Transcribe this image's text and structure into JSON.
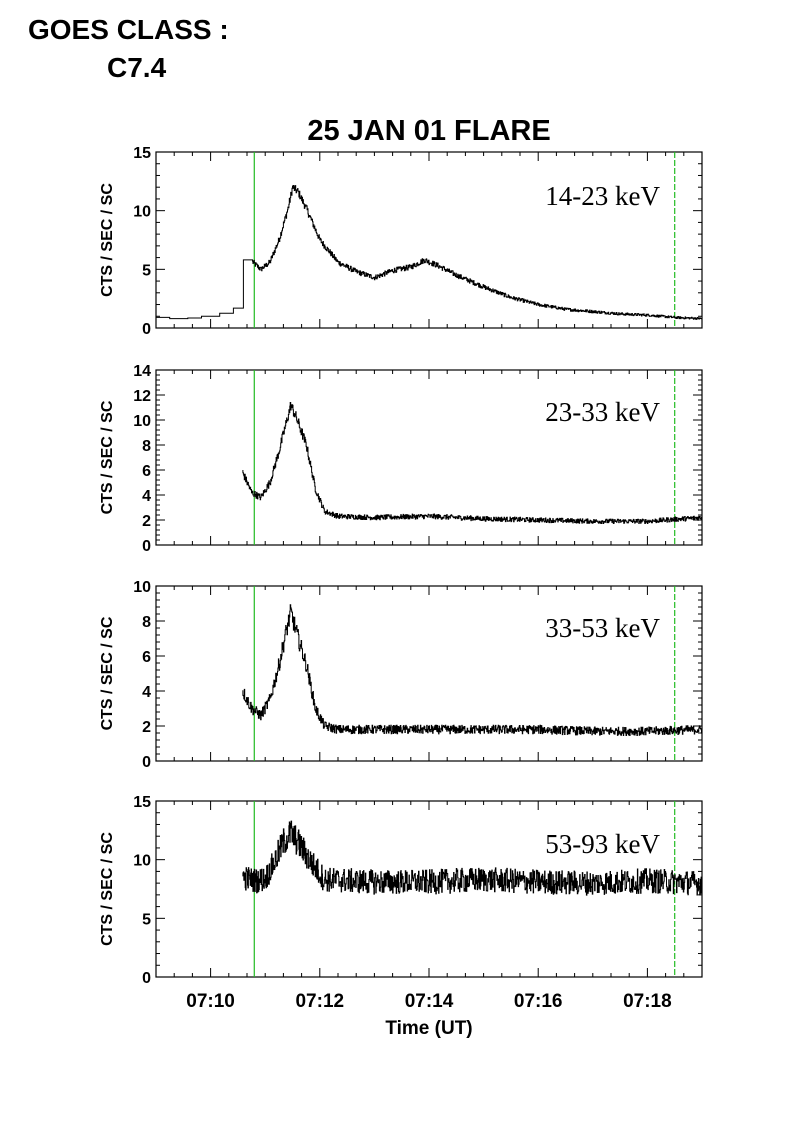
{
  "header": {
    "goes_label": "GOES CLASS :",
    "goes_value": "C7.4"
  },
  "chart_data": {
    "type": "line",
    "title": "25 JAN 01 FLARE",
    "xlabel": "Time (UT)",
    "ylabel": "CTS / SEC / SC",
    "x_unit": "minutes",
    "xlim": [
      "07:09",
      "07:19"
    ],
    "x_tick_labels": [
      "07:10",
      "07:12",
      "07:14",
      "07:16",
      "07:18"
    ],
    "x_tick_values": [
      "07:10",
      "07:12",
      "07:14",
      "07:16",
      "07:18"
    ],
    "vertical_markers": {
      "times": [
        "07:10:48",
        "07:18:30"
      ],
      "color": "#22bb22"
    },
    "line_color": "#000000",
    "panels": [
      {
        "label": "14-23 keV",
        "ylim": [
          0,
          15
        ],
        "y_ticks": [
          "0",
          "5",
          "10",
          "15"
        ],
        "y_tick_values": [
          0,
          5,
          10,
          15
        ],
        "series": {
          "x": [
            "07:09:00",
            "07:09:20",
            "07:09:40",
            "07:10:00",
            "07:10:20",
            "07:10:35",
            "07:10:36",
            "07:10:45",
            "07:10:55",
            "07:11:05",
            "07:11:15",
            "07:11:25",
            "07:11:30",
            "07:11:36",
            "07:11:45",
            "07:12:00",
            "07:12:20",
            "07:12:40",
            "07:13:00",
            "07:13:20",
            "07:13:40",
            "07:13:55",
            "07:14:10",
            "07:14:30",
            "07:15:00",
            "07:15:30",
            "07:16:00",
            "07:16:30",
            "07:17:00",
            "07:17:30",
            "07:18:00",
            "07:18:30",
            "07:19:00"
          ],
          "y": [
            0.9,
            0.8,
            0.9,
            1.0,
            1.3,
            1.7,
            5.8,
            5.7,
            5.0,
            5.6,
            7.5,
            10.2,
            12.0,
            11.6,
            10.2,
            7.5,
            5.6,
            4.8,
            4.3,
            4.9,
            5.2,
            5.8,
            5.3,
            4.5,
            3.5,
            2.6,
            2.0,
            1.6,
            1.4,
            1.2,
            1.1,
            0.9,
            0.8
          ]
        },
        "noise": 0.22
      },
      {
        "label": "23-33 keV",
        "ylim": [
          0,
          14
        ],
        "y_ticks": [
          "0",
          "2",
          "4",
          "6",
          "8",
          "10",
          "12",
          "14"
        ],
        "y_tick_values": [
          0,
          2,
          4,
          6,
          8,
          10,
          12,
          14
        ],
        "series": {
          "x": [
            "07:10:35",
            "07:10:45",
            "07:10:55",
            "07:11:05",
            "07:11:15",
            "07:11:22",
            "07:11:28",
            "07:11:35",
            "07:11:45",
            "07:11:55",
            "07:12:05",
            "07:12:20",
            "07:13:00",
            "07:14:00",
            "07:15:00",
            "07:16:00",
            "07:17:00",
            "07:18:00",
            "07:19:00"
          ],
          "y": [
            5.8,
            4.2,
            3.8,
            5.0,
            7.5,
            9.5,
            11.2,
            10.0,
            8.0,
            4.5,
            2.7,
            2.3,
            2.2,
            2.3,
            2.1,
            2.0,
            1.9,
            1.9,
            2.2
          ]
        },
        "noise": 0.2
      },
      {
        "label": "33-53 keV",
        "ylim": [
          0,
          10
        ],
        "y_ticks": [
          "0",
          "2",
          "4",
          "6",
          "8",
          "10"
        ],
        "y_tick_values": [
          0,
          2,
          4,
          6,
          8,
          10
        ],
        "series": {
          "x": [
            "07:10:35",
            "07:10:45",
            "07:10:55",
            "07:11:05",
            "07:11:15",
            "07:11:22",
            "07:11:28",
            "07:11:35",
            "07:11:45",
            "07:11:55",
            "07:12:05",
            "07:12:20",
            "07:13:00",
            "07:14:00",
            "07:15:00",
            "07:16:00",
            "07:17:00",
            "07:18:00",
            "07:19:00"
          ],
          "y": [
            4.0,
            3.0,
            2.6,
            3.5,
            5.5,
            7.2,
            8.5,
            7.2,
            5.5,
            3.0,
            2.0,
            1.8,
            1.8,
            1.8,
            1.8,
            1.8,
            1.7,
            1.7,
            1.8
          ]
        },
        "noise": 0.28
      },
      {
        "label": "53-93 keV",
        "ylim": [
          0,
          15
        ],
        "y_ticks": [
          "0",
          "5",
          "10",
          "15"
        ],
        "y_tick_values": [
          0,
          5,
          10,
          15
        ],
        "series": {
          "x": [
            "07:10:35",
            "07:10:50",
            "07:11:00",
            "07:11:10",
            "07:11:20",
            "07:11:28",
            "07:11:38",
            "07:11:50",
            "07:12:05",
            "07:13:00",
            "07:14:00",
            "07:15:00",
            "07:16:00",
            "07:17:00",
            "07:18:00",
            "07:19:00"
          ],
          "y": [
            8.5,
            8.2,
            8.4,
            9.8,
            11.5,
            12.3,
            11.2,
            9.8,
            8.3,
            8.1,
            8.1,
            8.3,
            8.1,
            8.0,
            8.2,
            8.0
          ]
        },
        "noise": 0.55
      }
    ]
  }
}
